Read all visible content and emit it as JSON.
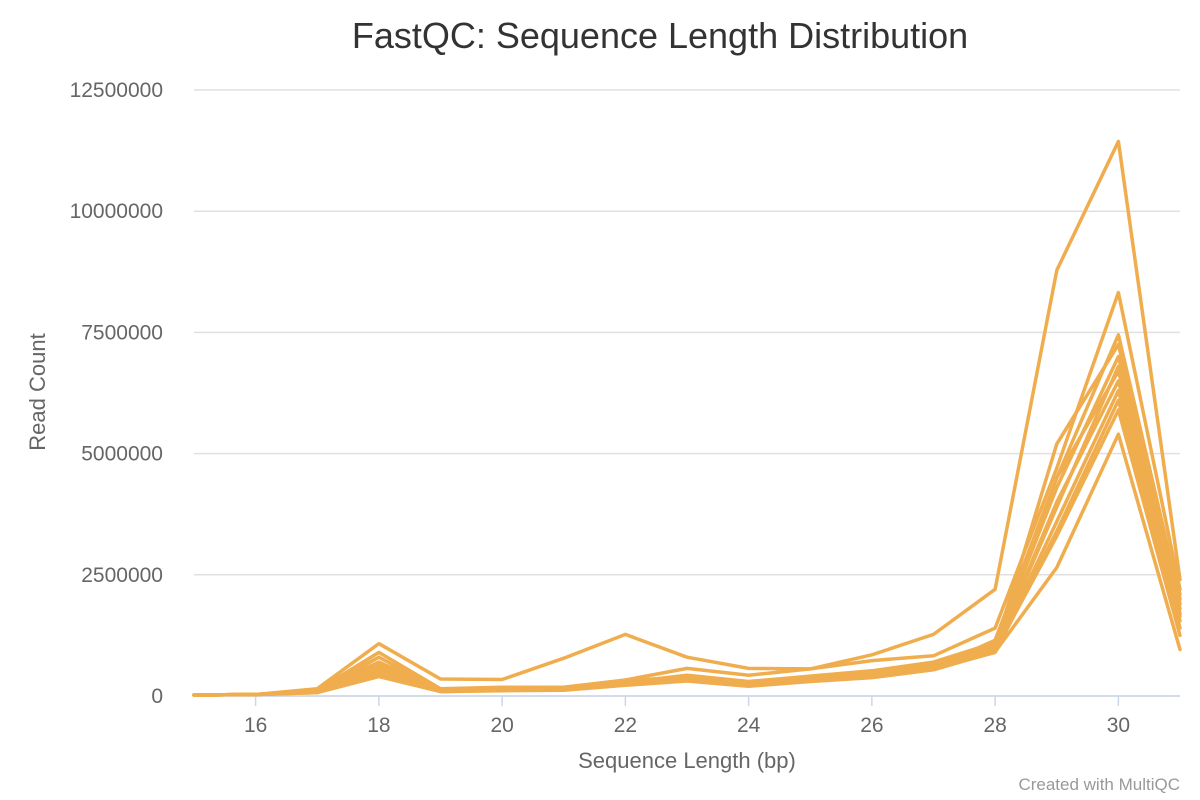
{
  "chart_data": {
    "type": "line",
    "title": "FastQC: Sequence Length Distribution",
    "xlabel": "Sequence Length (bp)",
    "ylabel": "Read Count",
    "xlim": [
      15,
      31
    ],
    "ylim": [
      0,
      12500000
    ],
    "x_ticks": [
      16,
      18,
      20,
      22,
      24,
      26,
      28,
      30
    ],
    "y_ticks": [
      0,
      2500000,
      5000000,
      7500000,
      10000000,
      12500000
    ],
    "grid": true,
    "legend": "none",
    "color": "#f0ad4e",
    "x": [
      15,
      16,
      17,
      18,
      19,
      20,
      21,
      22,
      23,
      24,
      25,
      26,
      27,
      28,
      29,
      30,
      31
    ],
    "series": [
      {
        "values": [
          20000,
          30000,
          150000,
          1080000,
          350000,
          340000,
          780000,
          1270000,
          800000,
          570000,
          560000,
          850000,
          1270000,
          2200000,
          8780000,
          11440000,
          2400000
        ]
      },
      {
        "values": [
          20000,
          30000,
          120000,
          900000,
          150000,
          180000,
          180000,
          330000,
          570000,
          430000,
          560000,
          730000,
          830000,
          1400000,
          4700000,
          8320000,
          2200000
        ]
      },
      {
        "values": [
          20000,
          30000,
          100000,
          800000,
          130000,
          160000,
          170000,
          280000,
          430000,
          300000,
          410000,
          520000,
          700000,
          1100000,
          4500000,
          7450000,
          2000000
        ]
      },
      {
        "values": [
          20000,
          30000,
          100000,
          700000,
          130000,
          170000,
          180000,
          310000,
          400000,
          280000,
          390000,
          470000,
          650000,
          1000000,
          5200000,
          7250000,
          1900000
        ]
      },
      {
        "values": [
          20000,
          30000,
          90000,
          650000,
          120000,
          150000,
          160000,
          290000,
          380000,
          260000,
          370000,
          450000,
          620000,
          1050000,
          4300000,
          7000000,
          1800000
        ]
      },
      {
        "values": [
          20000,
          30000,
          90000,
          600000,
          110000,
          140000,
          150000,
          270000,
          360000,
          240000,
          350000,
          430000,
          600000,
          950000,
          3900000,
          6800000,
          1700000
        ]
      },
      {
        "values": [
          20000,
          30000,
          80000,
          550000,
          110000,
          140000,
          150000,
          260000,
          350000,
          240000,
          340000,
          420000,
          590000,
          970000,
          4000000,
          6500000,
          1650000
        ]
      },
      {
        "values": [
          20000,
          30000,
          80000,
          500000,
          100000,
          130000,
          140000,
          250000,
          340000,
          230000,
          330000,
          410000,
          580000,
          920000,
          3600000,
          6300000,
          1550000
        ]
      },
      {
        "values": [
          20000,
          30000,
          80000,
          470000,
          100000,
          120000,
          130000,
          240000,
          330000,
          220000,
          320000,
          400000,
          560000,
          900000,
          3400000,
          6100000,
          1400000
        ]
      },
      {
        "values": [
          20000,
          30000,
          70000,
          430000,
          90000,
          120000,
          130000,
          230000,
          320000,
          210000,
          310000,
          390000,
          550000,
          930000,
          3300000,
          5900000,
          1250000
        ]
      },
      {
        "values": [
          20000,
          30000,
          70000,
          400000,
          90000,
          110000,
          120000,
          220000,
          310000,
          200000,
          300000,
          380000,
          540000,
          910000,
          2650000,
          5400000,
          960000
        ]
      },
      {
        "values": [
          20000,
          30000,
          80000,
          520000,
          100000,
          130000,
          140000,
          250000,
          350000,
          230000,
          330000,
          410000,
          580000,
          1150000,
          4500000,
          6700000,
          2100000
        ]
      }
    ]
  },
  "credit": "Created with MultiQC"
}
